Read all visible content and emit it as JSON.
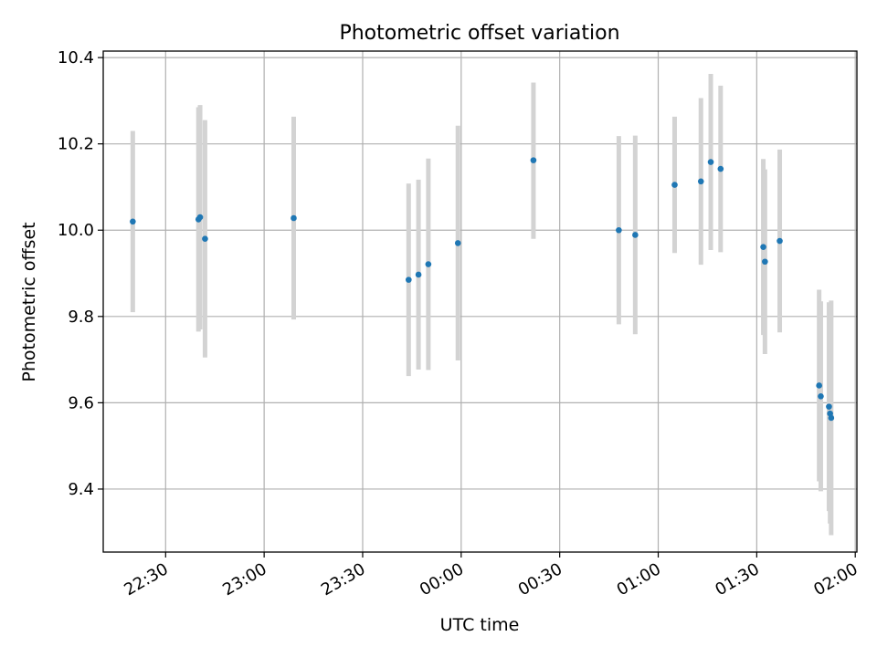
{
  "chart_data": {
    "type": "scatter",
    "title": "Photometric offset variation",
    "xlabel": "UTC time",
    "ylabel": "Photometric offset",
    "x_unit": "UTC time (hh:mm)",
    "xlim": [
      "22:11",
      "02:00:30"
    ],
    "ylim": [
      9.254,
      10.415
    ],
    "grid": true,
    "x_ticks": [
      "22:30",
      "23:00",
      "23:30",
      "00:00",
      "00:30",
      "01:00",
      "01:30",
      "02:00"
    ],
    "y_ticks": [
      "9.4",
      "9.6",
      "9.8",
      "10.0",
      "10.2",
      "10.4"
    ],
    "point_color": "#1f77b4",
    "errorbar_color": "#d3d3d3",
    "points": [
      {
        "x": "22:20",
        "y": 10.02,
        "lo": 9.81,
        "hi": 10.23
      },
      {
        "x": "22:40",
        "y": 10.025,
        "lo": 9.765,
        "hi": 10.285
      },
      {
        "x": "22:40:30",
        "y": 10.03,
        "lo": 9.77,
        "hi": 10.29
      },
      {
        "x": "22:42",
        "y": 9.98,
        "lo": 9.705,
        "hi": 10.255
      },
      {
        "x": "23:09",
        "y": 10.028,
        "lo": 9.793,
        "hi": 10.263
      },
      {
        "x": "23:44",
        "y": 9.885,
        "lo": 9.662,
        "hi": 10.108
      },
      {
        "x": "23:47",
        "y": 9.897,
        "lo": 9.677,
        "hi": 10.117
      },
      {
        "x": "23:50",
        "y": 9.921,
        "lo": 9.676,
        "hi": 10.166
      },
      {
        "x": "23:59",
        "y": 9.97,
        "lo": 9.698,
        "hi": 10.242
      },
      {
        "x": "00:22",
        "y": 10.162,
        "lo": 9.98,
        "hi": 10.342
      },
      {
        "x": "00:48",
        "y": 10.0,
        "lo": 9.782,
        "hi": 10.218
      },
      {
        "x": "00:53",
        "y": 9.989,
        "lo": 9.759,
        "hi": 10.219
      },
      {
        "x": "01:05",
        "y": 10.105,
        "lo": 9.947,
        "hi": 10.263
      },
      {
        "x": "01:13",
        "y": 10.113,
        "lo": 9.92,
        "hi": 10.306
      },
      {
        "x": "01:16",
        "y": 10.158,
        "lo": 9.954,
        "hi": 10.362
      },
      {
        "x": "01:19",
        "y": 10.142,
        "lo": 9.949,
        "hi": 10.335
      },
      {
        "x": "01:32",
        "y": 9.961,
        "lo": 9.757,
        "hi": 10.165
      },
      {
        "x": "01:32:30",
        "y": 9.927,
        "lo": 9.713,
        "hi": 10.141
      },
      {
        "x": "01:37",
        "y": 9.975,
        "lo": 9.763,
        "hi": 10.187
      },
      {
        "x": "01:49",
        "y": 9.64,
        "lo": 9.418,
        "hi": 9.862
      },
      {
        "x": "01:49:30",
        "y": 9.615,
        "lo": 9.395,
        "hi": 9.835
      },
      {
        "x": "01:52",
        "y": 9.591,
        "lo": 9.349,
        "hi": 9.833
      },
      {
        "x": "01:52:20",
        "y": 9.575,
        "lo": 9.32,
        "hi": 9.83
      },
      {
        "x": "01:52:40",
        "y": 9.565,
        "lo": 9.293,
        "hi": 9.837
      }
    ]
  }
}
